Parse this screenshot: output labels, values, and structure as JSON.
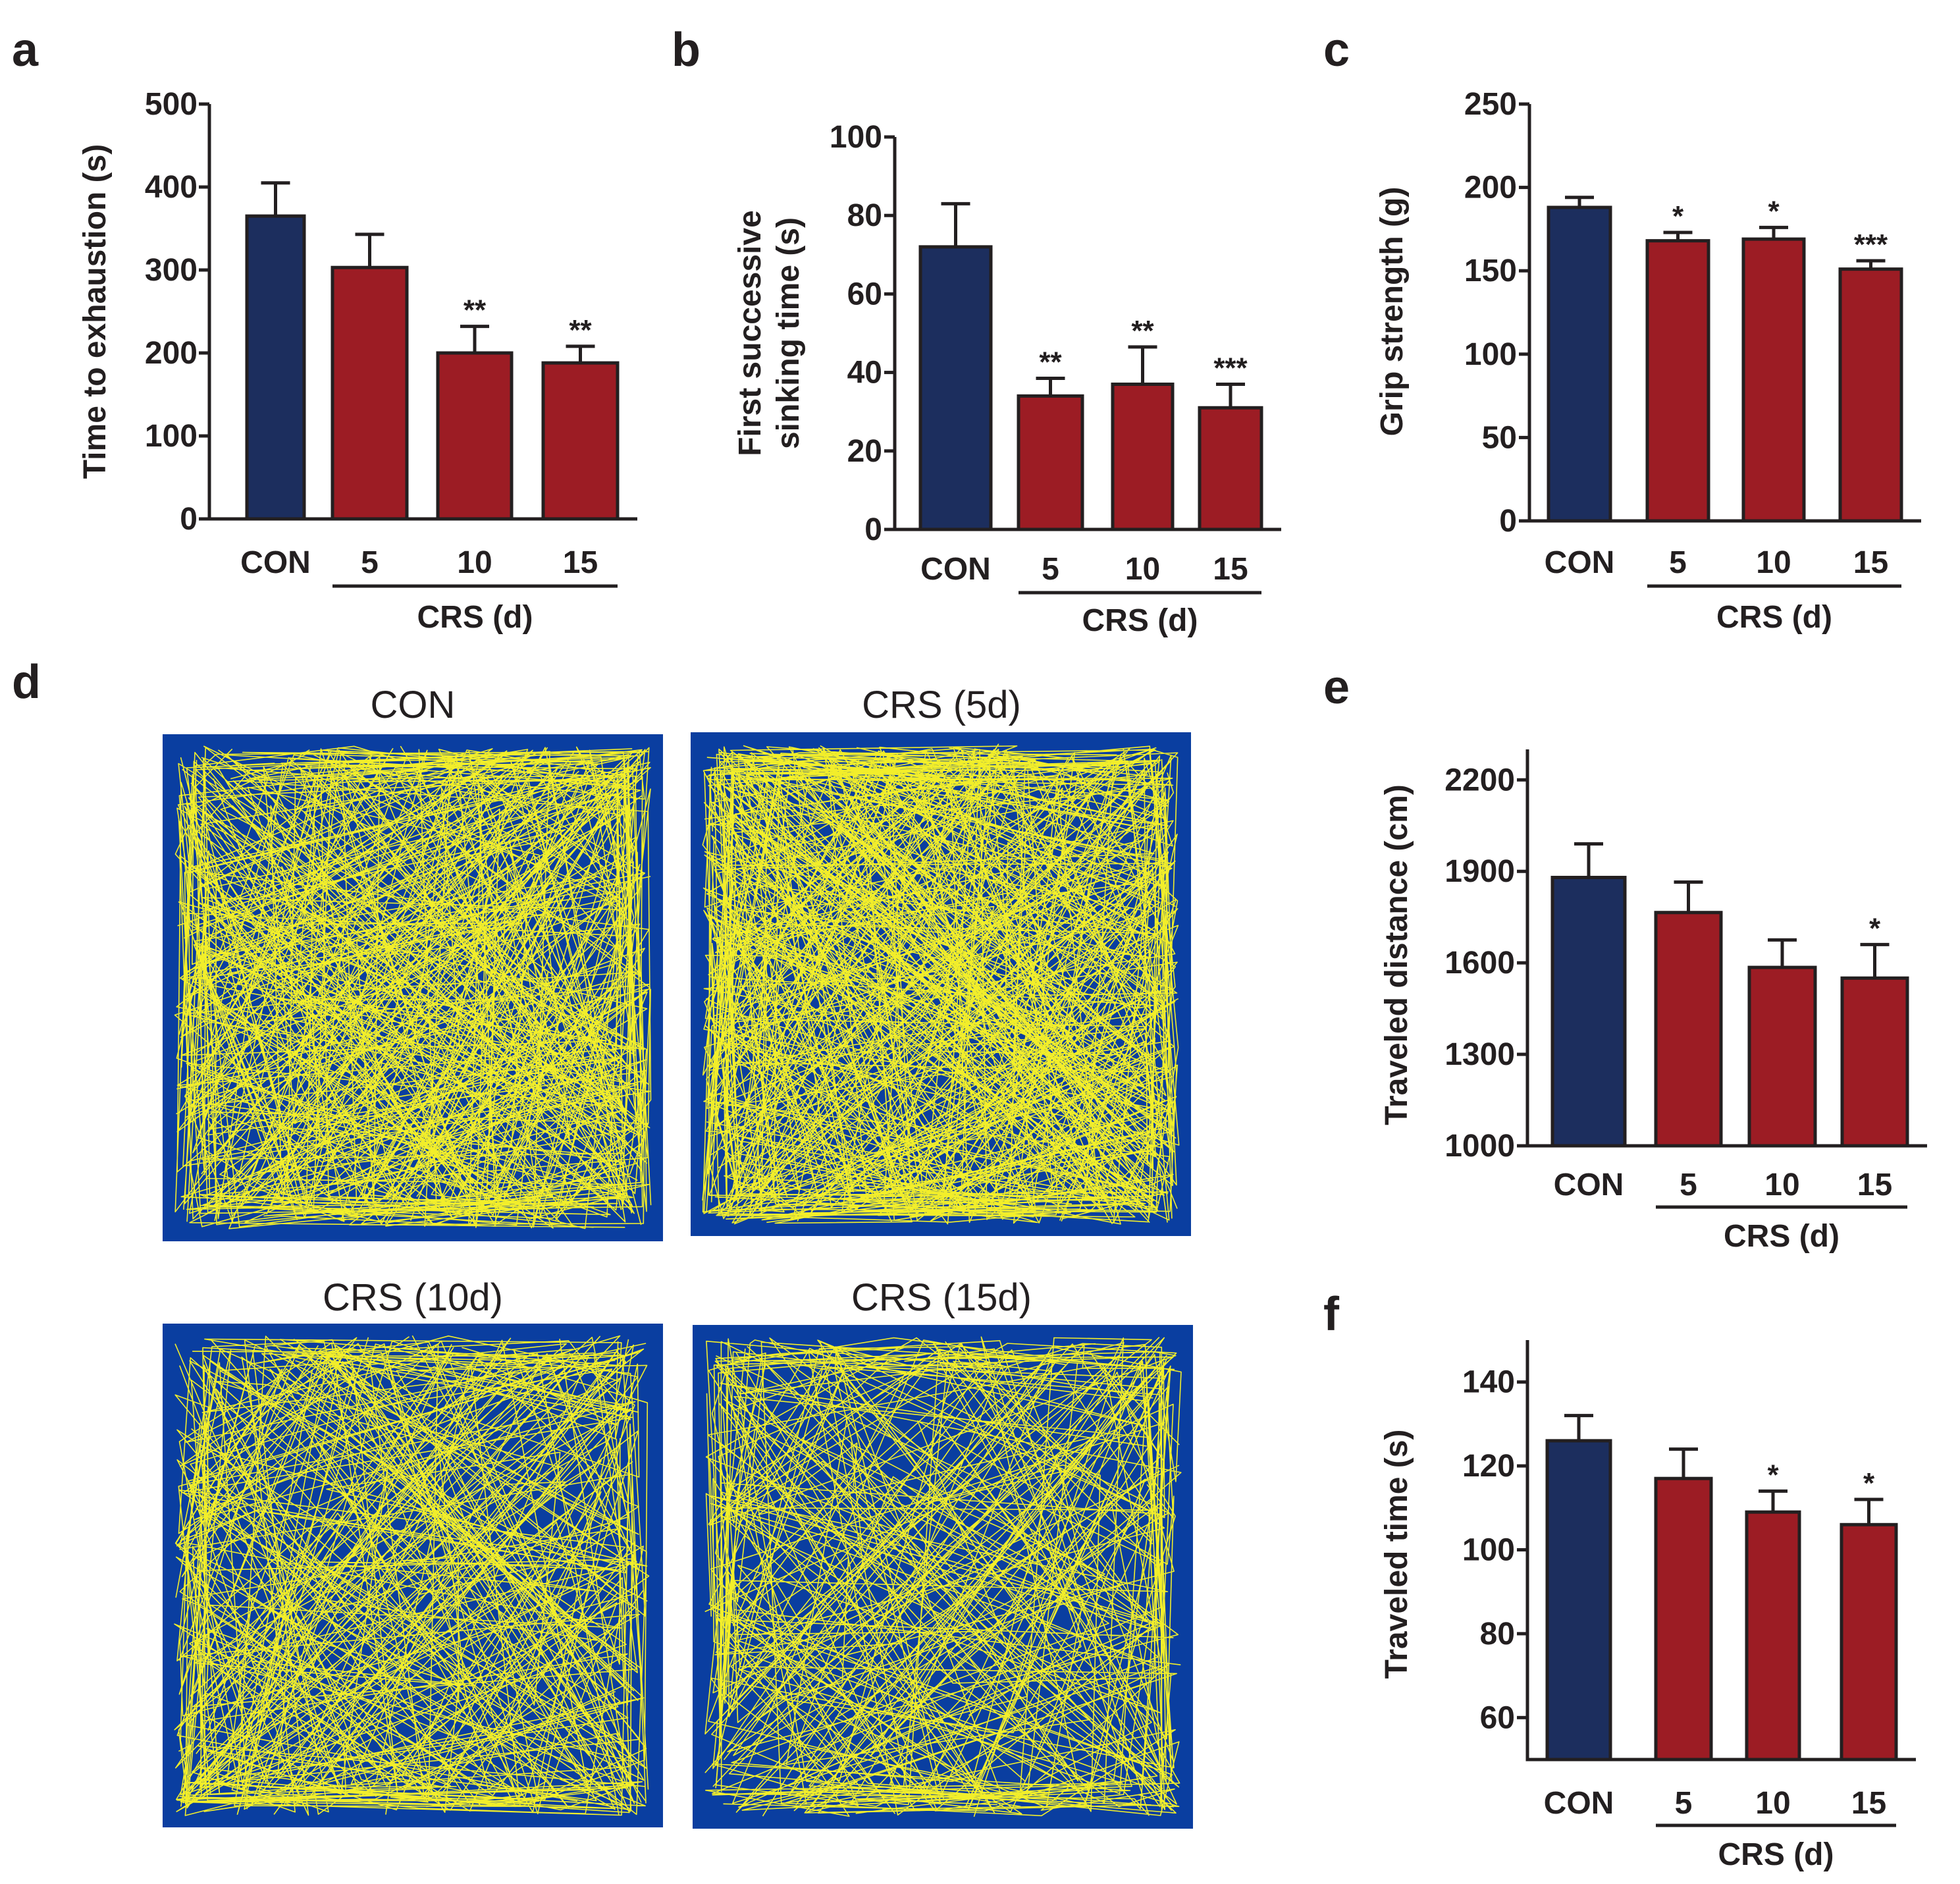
{
  "colors": {
    "control": "#1c2e5e",
    "crs": "#9c1c24",
    "arena": "#0a3ea0",
    "track": "#f2ee2a",
    "ink": "#231f20"
  },
  "panel_d": {
    "letter": "d",
    "arenas": [
      {
        "title": "CON"
      },
      {
        "title": "CRS (5d)"
      },
      {
        "title": "CRS (10d)"
      },
      {
        "title": "CRS (15d)"
      }
    ]
  },
  "chart_data": [
    {
      "id": "a",
      "letter": "a",
      "type": "bar",
      "title": "",
      "xlabel": "",
      "ylabel": "Time to exhaustion (s)",
      "categories": [
        "CON",
        "5",
        "10",
        "15"
      ],
      "group_label": "CRS (d)",
      "values": [
        365,
        303,
        200,
        188
      ],
      "errors": [
        40,
        40,
        32,
        20
      ],
      "significance": [
        "",
        "",
        "**",
        "**"
      ],
      "ylim": [
        0,
        500
      ],
      "yticks": [
        0,
        100,
        200,
        300,
        400,
        500
      ]
    },
    {
      "id": "b",
      "letter": "b",
      "type": "bar",
      "title": "",
      "xlabel": "",
      "ylabel": [
        "First successive",
        "sinking time (s)"
      ],
      "categories": [
        "CON",
        "5",
        "10",
        "15"
      ],
      "group_label": "CRS (d)",
      "values": [
        72,
        34,
        37,
        31
      ],
      "errors": [
        11,
        4.5,
        9.5,
        6
      ],
      "significance": [
        "",
        "**",
        "**",
        "***"
      ],
      "ylim": [
        0,
        100
      ],
      "yticks": [
        0,
        20,
        40,
        60,
        80,
        100
      ]
    },
    {
      "id": "c",
      "letter": "c",
      "type": "bar",
      "title": "",
      "xlabel": "",
      "ylabel": "Grip strength (g)",
      "categories": [
        "CON",
        "5",
        "10",
        "15"
      ],
      "group_label": "CRS (d)",
      "values": [
        188,
        168,
        169,
        151
      ],
      "errors": [
        6,
        5,
        7,
        5
      ],
      "significance": [
        "",
        "*",
        "*",
        "***"
      ],
      "ylim": [
        0,
        250
      ],
      "yticks": [
        0,
        50,
        100,
        150,
        200,
        250
      ]
    },
    {
      "id": "e",
      "letter": "e",
      "type": "bar",
      "title": "",
      "xlabel": "",
      "ylabel": "Traveled distance (cm)",
      "categories": [
        "CON",
        "5",
        "10",
        "15"
      ],
      "group_label": "CRS (d)",
      "values": [
        1880,
        1765,
        1585,
        1550
      ],
      "errors": [
        110,
        100,
        90,
        110
      ],
      "significance": [
        "",
        "",
        "",
        "*"
      ],
      "ylim": [
        1000,
        2300
      ],
      "yticks": [
        1000,
        1300,
        1600,
        1900,
        2200
      ]
    },
    {
      "id": "f",
      "letter": "f",
      "type": "bar",
      "title": "",
      "xlabel": "",
      "ylabel": "Traveled time (s)",
      "categories": [
        "CON",
        "5",
        "10",
        "15"
      ],
      "group_label": "CRS (d)",
      "values": [
        126,
        117,
        109,
        106
      ],
      "errors": [
        6,
        7,
        5,
        6
      ],
      "significance": [
        "",
        "",
        "*",
        "*"
      ],
      "ylim": [
        50,
        150
      ],
      "yticks": [
        60,
        80,
        100,
        120,
        140
      ]
    }
  ]
}
